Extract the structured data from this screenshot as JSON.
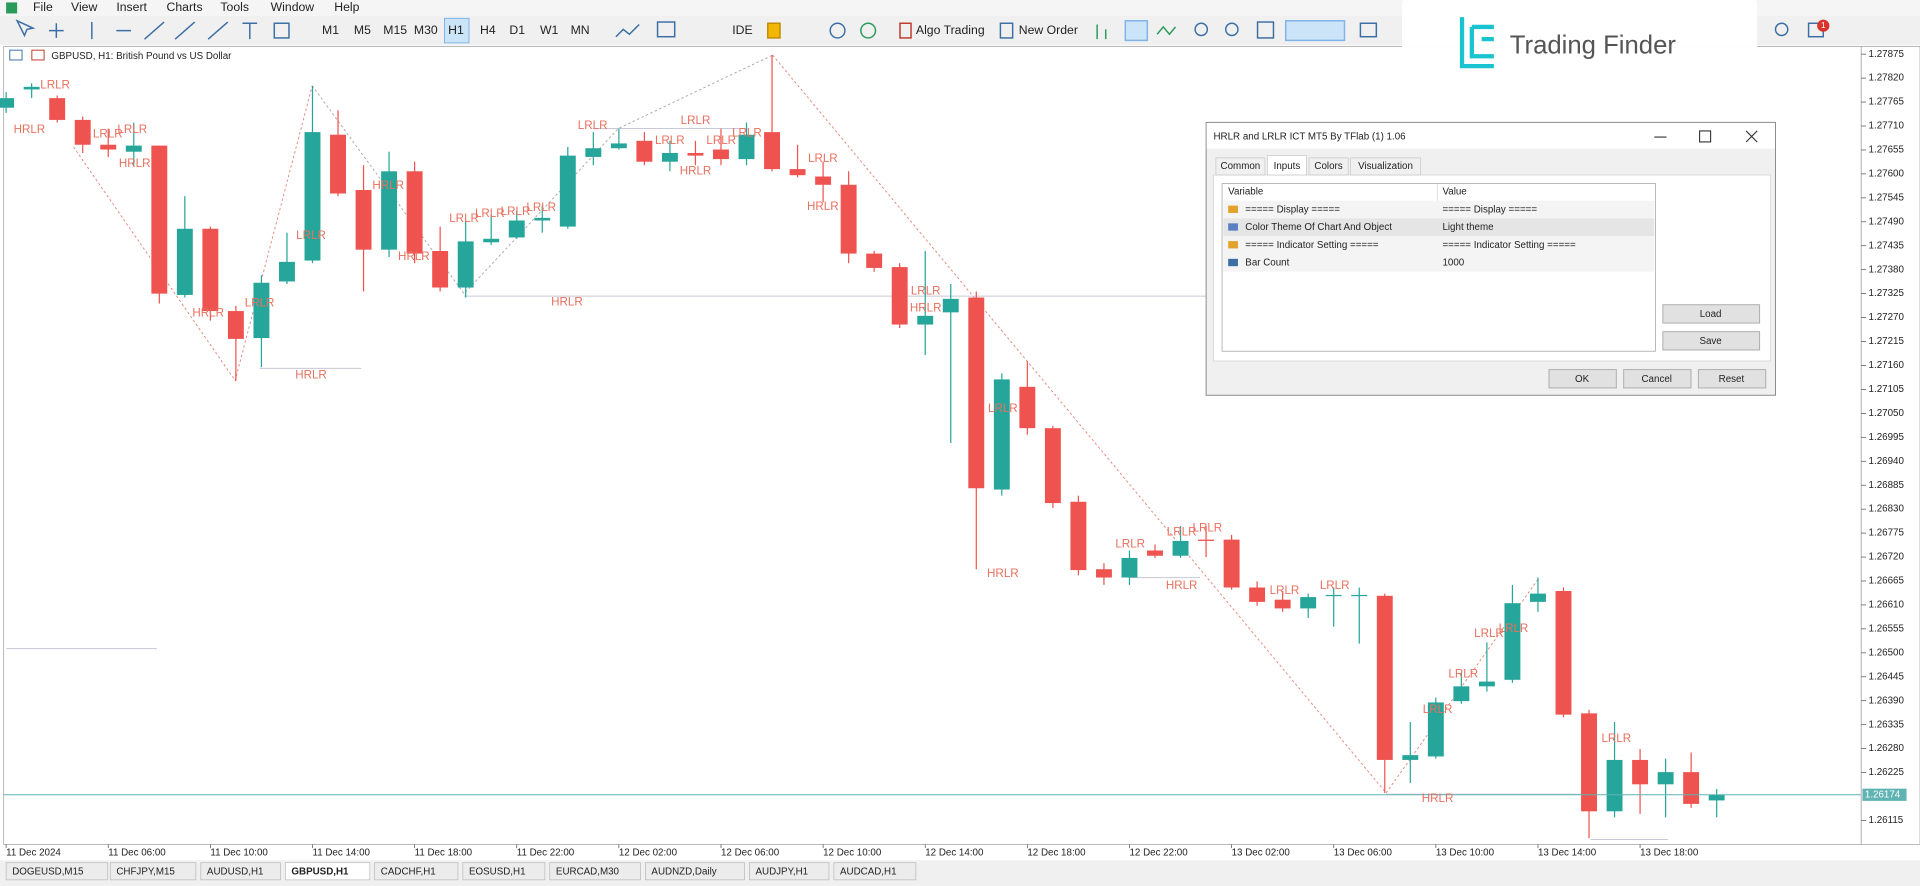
{
  "menu": [
    "File",
    "View",
    "Insert",
    "Charts",
    "Tools",
    "Window",
    "Help"
  ],
  "toolbar": {
    "timeframes": [
      "M1",
      "M5",
      "M15",
      "M30",
      "H1",
      "H4",
      "D1",
      "W1",
      "MN"
    ],
    "ide": "IDE",
    "algo_trading": "Algo Trading",
    "new_order": "New Order",
    "badge": 1
  },
  "logo": "Trading Finder",
  "chart_data": {
    "type": "candlestick",
    "title": "GBPUSD, H1:  British Pound vs US Dollar",
    "categories": [
      "11 Dec 2024",
      null,
      null,
      null,
      "11 Dec 06:00",
      null,
      null,
      null,
      "11 Dec 10:00",
      null,
      null,
      null,
      "11 Dec 14:00",
      null,
      null,
      null,
      "11 Dec 18:00",
      null,
      null,
      null,
      "11 Dec 22:00",
      null,
      null,
      null,
      "12 Dec 02:00",
      null,
      null,
      null,
      "12 Dec 06:00",
      null,
      null,
      null,
      "12 Dec 10:00",
      null,
      null,
      null,
      "12 Dec 14:00",
      null,
      null,
      null,
      "12 Dec 18:00",
      null,
      null,
      null,
      "12 Dec 22:00",
      null,
      null,
      null,
      "13 Dec 02:00",
      null,
      null,
      null,
      "13 Dec 06:00",
      null,
      null,
      null,
      "13 Dec 10:00",
      null,
      null,
      null,
      "13 Dec 14:00",
      null,
      null,
      null,
      "13 Dec 18:00",
      null,
      null,
      null
    ],
    "open": [
      1.27752,
      1.27794,
      1.27774,
      1.27724,
      1.27667,
      1.27651,
      1.27665,
      1.27322,
      1.27474,
      1.27285,
      1.27223,
      1.27353,
      1.27401,
      1.2769,
      1.27563,
      1.27426,
      1.27606,
      1.27423,
      1.27339,
      1.27443,
      1.27454,
      1.27493,
      1.27479,
      1.27639,
      1.27659,
      1.27676,
      1.27628,
      1.27648,
      1.27656,
      1.27634,
      1.27696,
      1.27611,
      1.27594,
      1.27575,
      1.27417,
      1.27386,
      1.27254,
      1.27282,
      1.27316,
      1.26875,
      1.27111,
      1.27016,
      1.26847,
      1.26692,
      1.26673,
      1.26735,
      1.26723,
      1.2676,
      1.2676,
      1.2665,
      1.26622,
      1.26602,
      1.26631,
      1.26631,
      1.26631,
      1.26254,
      1.26262,
      1.26389,
      1.26423,
      1.26438,
      1.26617,
      1.26642,
      1.26361,
      1.26136,
      1.26254,
      1.26198,
      1.26226,
      1.26161
    ],
    "high": [
      1.27788,
      1.27808,
      1.2778,
      1.27732,
      1.27704,
      1.27718,
      1.27665,
      1.27549,
      1.27479,
      1.27297,
      1.27367,
      1.27465,
      1.27802,
      1.27746,
      1.2762,
      1.27651,
      1.27628,
      1.27479,
      1.27493,
      1.27507,
      1.27516,
      1.27527,
      1.27662,
      1.27696,
      1.27704,
      1.27696,
      1.27676,
      1.27676,
      1.27704,
      1.27718,
      1.27873,
      1.27667,
      1.27628,
      1.27606,
      1.27423,
      1.27395,
      1.27423,
      1.27347,
      1.2733,
      1.27142,
      1.2717,
      1.27021,
      1.26861,
      1.26706,
      1.26735,
      1.26749,
      1.26791,
      1.26791,
      1.26771,
      1.26664,
      1.26642,
      1.26636,
      1.2665,
      1.2665,
      1.26636,
      1.26341,
      1.26397,
      1.26454,
      1.26524,
      1.26656,
      1.26673,
      1.2665,
      1.26369,
      1.26341,
      1.26279,
      1.26257,
      1.26271,
      1.26187
    ],
    "low": [
      1.2774,
      1.27774,
      1.27718,
      1.27648,
      1.27639,
      1.2762,
      1.27302,
      1.27316,
      1.27263,
      1.27125,
      1.27156,
      1.27347,
      1.27395,
      1.27549,
      1.2733,
      1.27409,
      1.27395,
      1.2733,
      1.27316,
      1.27437,
      1.27451,
      1.27465,
      1.27474,
      1.2762,
      1.27656,
      1.2762,
      1.27606,
      1.2762,
      1.2762,
      1.2762,
      1.27606,
      1.27592,
      1.27535,
      1.27395,
      1.27375,
      1.27246,
      1.27184,
      1.26982,
      1.26692,
      1.26861,
      1.27001,
      1.26833,
      1.26678,
      1.26656,
      1.26656,
      1.26718,
      1.26718,
      1.2672,
      1.26645,
      1.26608,
      1.26594,
      1.2658,
      1.2656,
      1.26521,
      1.26178,
      1.26201,
      1.26257,
      1.26383,
      1.26411,
      1.26431,
      1.26594,
      1.26352,
      1.26074,
      1.26122,
      1.2613,
      1.26122,
      1.26144,
      1.26122
    ],
    "close": [
      1.27774,
      1.278,
      1.27724,
      1.27667,
      1.27656,
      1.27665,
      1.27325,
      1.27474,
      1.27285,
      1.27221,
      1.2735,
      1.27398,
      1.27696,
      1.27555,
      1.27426,
      1.27606,
      1.27417,
      1.27339,
      1.27445,
      1.27451,
      1.27493,
      1.27499,
      1.27642,
      1.27659,
      1.2767,
      1.27628,
      1.27648,
      1.27642,
      1.27634,
      1.2769,
      1.27611,
      1.27597,
      1.27575,
      1.27417,
      1.27384,
      1.27254,
      1.27274,
      1.27313,
      1.26878,
      1.27128,
      1.27016,
      1.26844,
      1.2669,
      1.26673,
      1.26718,
      1.26723,
      1.26757,
      1.26757,
      1.2665,
      1.26617,
      1.26602,
      1.26628,
      1.26633,
      1.26633,
      1.26254,
      1.26265,
      1.26386,
      1.26423,
      1.26434,
      1.26614,
      1.26636,
      1.26358,
      1.26136,
      1.26254,
      1.26198,
      1.26226,
      1.26153,
      1.26174
    ],
    "up_color": "#26a69a",
    "down_color": "#ef5350",
    "current_price": 1.26174,
    "ylim": [
      1.2606,
      1.27887
    ],
    "yticks": [
      1.27875,
      {
        "value": 1.2782,
        "label": "1.27820"
      },
      1.27765,
      {
        "value": 1.2771,
        "label": "1.27710"
      },
      1.27655,
      {
        "value": 1.276,
        "label": "1.27600"
      },
      1.27545,
      {
        "value": 1.2749,
        "label": "1.27490"
      },
      1.27435,
      {
        "value": 1.2738,
        "label": "1.27380"
      },
      1.27325,
      {
        "value": 1.2727,
        "label": "1.27270"
      },
      1.27215,
      {
        "value": 1.2716,
        "label": "1.27160"
      },
      1.27105,
      {
        "value": 1.2705,
        "label": "1.27050"
      },
      1.26995,
      {
        "value": 1.2694,
        "label": "1.26940"
      },
      1.26885,
      {
        "value": 1.2683,
        "label": "1.26830"
      },
      1.26775,
      {
        "value": 1.2672,
        "label": "1.26720"
      },
      1.26665,
      {
        "value": 1.2661,
        "label": "1.26610"
      },
      1.26555,
      {
        "value": 1.265,
        "label": "1.26500"
      },
      1.26445,
      {
        "value": 1.2639,
        "label": "1.26390"
      },
      1.26335,
      {
        "value": 1.2628,
        "label": "1.26280"
      },
      1.26225,
      1.26115
    ],
    "annotations": [
      "LRLR",
      "HRLR",
      "LRLR",
      "LRLR",
      "HRLR",
      "HRLR",
      "LRLR",
      "LRLR",
      "HRLR",
      "HRLR",
      "HRLR",
      "LRLR",
      "LRLR",
      "LRLR",
      "LRLR",
      "HRLR",
      "LRLR",
      "LRLR",
      "LRLR",
      "LRLR",
      "HRLR",
      "LRLR",
      "LRLR",
      "HRLR",
      "LRLR",
      "HRLR",
      "LRLR",
      "HRLR",
      "LRLR",
      "LRLR",
      "LRLR",
      "HRLR",
      "LRLR",
      "LRLR",
      "LRLR",
      "LRLR",
      "LRLR",
      "LRLR",
      "HRLR",
      "LRLR"
    ],
    "grid": false
  },
  "dialog": {
    "title": "HRLR and LRLR ICT MT5 By TFlab (1) 1.06",
    "tabs": [
      "Common",
      "Inputs",
      "Colors",
      "Visualization"
    ],
    "table": {
      "header": [
        "Variable",
        "Value"
      ],
      "rows": [
        [
          "===== Display =====",
          "===== Display ====="
        ],
        [
          "Color Theme Of Chart And Object",
          "Light theme"
        ],
        [
          "===== Indicator Setting =====",
          "===== Indicator Setting ====="
        ],
        [
          "Bar Count",
          "1000"
        ]
      ]
    },
    "buttons": {
      "load": "Load",
      "save": "Save",
      "ok": "OK",
      "cancel": "Cancel",
      "reset": "Reset"
    }
  },
  "tabs": [
    "DOGEUSD,M15",
    "CHFJPY,M15",
    "AUDUSD,H1",
    "GBPUSD,H1",
    "CADCHF,H1",
    "EOSUSD,H1",
    "EURCAD,M30",
    "AUDNZD,Daily",
    "AUDJPY,H1",
    "AUDCAD,H1"
  ]
}
